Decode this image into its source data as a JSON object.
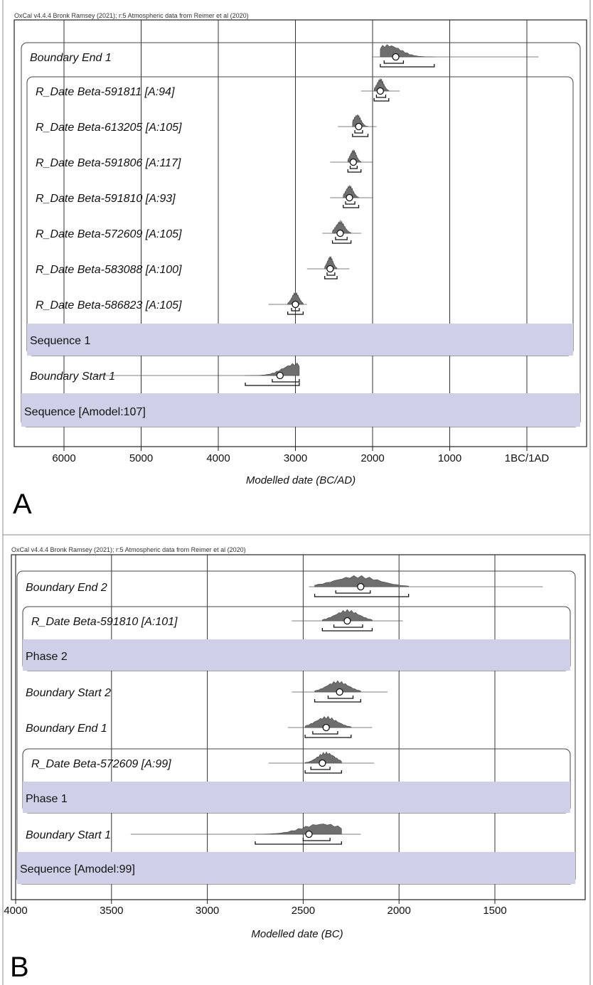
{
  "panels": [
    {
      "letter": "A",
      "credit": "OxCal v4.4.4 Bronk Ramsey (2021); r:5 Atmospheric data from Reimer et al (2020)",
      "xlabel": "Modelled date (BC/AD)",
      "ticks": [
        {
          "value": 6000,
          "label": "6000"
        },
        {
          "value": 5000,
          "label": "5000"
        },
        {
          "value": 4000,
          "label": "4000"
        },
        {
          "value": 3000,
          "label": "3000"
        },
        {
          "value": 2000,
          "label": "2000"
        },
        {
          "value": 1000,
          "label": "1000"
        },
        {
          "value": 0,
          "label": "1BC/1AD"
        }
      ],
      "groups": [
        {
          "name": "Sequence 1"
        },
        {
          "name": "Sequence [Amodel:107]"
        }
      ],
      "rows": [
        {
          "label": "Boundary End 1",
          "median": 1700,
          "line": [
            2000,
            -150
          ],
          "peak": 1800,
          "r68": [
            1850,
            1600
          ],
          "r95": [
            1900,
            1200
          ]
        },
        {
          "label": "R_Date Beta-591811 [A:94]",
          "median": 1900,
          "line": [
            2150,
            1650
          ],
          "peak": 1900,
          "r68": [
            1950,
            1830
          ],
          "r95": [
            1980,
            1790
          ]
        },
        {
          "label": "R_Date Beta-613205 [A:105]",
          "median": 2180,
          "line": [
            2450,
            1950
          ],
          "peak": 2200,
          "r68": [
            2230,
            2130
          ],
          "r95": [
            2260,
            2060
          ]
        },
        {
          "label": "R_Date Beta-591806 [A:117]",
          "median": 2250,
          "line": [
            2550,
            2000
          ],
          "peak": 2250,
          "r68": [
            2290,
            2200
          ],
          "r95": [
            2320,
            2150
          ]
        },
        {
          "label": "R_Date Beta-591810 [A:93]",
          "median": 2300,
          "line": [
            2550,
            2000
          ],
          "peak": 2300,
          "r68": [
            2350,
            2230
          ],
          "r95": [
            2380,
            2180
          ]
        },
        {
          "label": "R_Date Beta-572609 [A:105]",
          "median": 2420,
          "line": [
            2650,
            2150
          ],
          "peak": 2420,
          "r68": [
            2480,
            2330
          ],
          "r95": [
            2520,
            2280
          ]
        },
        {
          "label": "R_Date Beta-583088 [A:100]",
          "median": 2550,
          "line": [
            2850,
            2300
          ],
          "peak": 2550,
          "r68": [
            2590,
            2490
          ],
          "r95": [
            2620,
            2460
          ]
        },
        {
          "label": "R_Date Beta-586823 [A:105]",
          "median": 3000,
          "line": [
            3350,
            2850
          ],
          "peak": 3000,
          "r68": [
            3050,
            2950
          ],
          "r95": [
            3100,
            2900
          ]
        },
        {
          "label": "Boundary Start 1",
          "median": 3200,
          "line": [
            5600,
            2950
          ],
          "peak": 3000,
          "r68": [
            3300,
            2950
          ],
          "r95": [
            3650,
            2950
          ]
        }
      ]
    },
    {
      "letter": "B",
      "credit": "OxCal v4.4.4 Bronk Ramsey (2021); r:5 Atmospheric data from Reimer et al (2020)",
      "xlabel": "Modelled date (BC)",
      "ticks": [
        {
          "value": 4000,
          "label": "4000"
        },
        {
          "value": 3500,
          "label": "3500"
        },
        {
          "value": 3000,
          "label": "3000"
        },
        {
          "value": 2500,
          "label": "2500"
        },
        {
          "value": 2000,
          "label": "2000"
        },
        {
          "value": 1500,
          "label": "1500"
        }
      ],
      "groups": [
        {
          "name": "Phase 2"
        },
        {
          "name": "Phase 1"
        },
        {
          "name": "Sequence [Amodel:99]"
        }
      ],
      "rows": [
        {
          "label": "Boundary End 2",
          "median": 2200,
          "line": [
            2470,
            1250
          ],
          "peak": 2220,
          "r68": [
            2330,
            2150
          ],
          "r95": [
            2440,
            1950
          ]
        },
        {
          "label": "R_Date Beta-591810 [A:101]",
          "median": 2270,
          "line": [
            2560,
            1980
          ],
          "peak": 2270,
          "r68": [
            2340,
            2190
          ],
          "r95": [
            2400,
            2140
          ]
        },
        {
          "label": "Boundary Start 2",
          "median": 2310,
          "line": [
            2560,
            2060
          ],
          "peak": 2320,
          "r68": [
            2370,
            2240
          ],
          "r95": [
            2440,
            2200
          ]
        },
        {
          "label": "Boundary End 1",
          "median": 2380,
          "line": [
            2580,
            2140
          ],
          "peak": 2380,
          "r68": [
            2450,
            2320
          ],
          "r95": [
            2490,
            2250
          ]
        },
        {
          "label": "R_Date Beta-572609 [A:99]",
          "median": 2400,
          "line": [
            2680,
            2130
          ],
          "peak": 2380,
          "r68": [
            2460,
            2360
          ],
          "r95": [
            2490,
            2300
          ]
        },
        {
          "label": "Boundary Start 1",
          "median": 2470,
          "line": [
            3400,
            2200
          ],
          "peak": 2400,
          "r68": [
            2500,
            2360
          ],
          "r95": [
            2750,
            2300
          ]
        }
      ]
    }
  ],
  "chart_data": [
    {
      "type": "table",
      "xlabel": "Modelled date (BC/AD)",
      "xlim": [
        6500,
        -250
      ],
      "rows": [
        {
          "label": "Boundary End 1",
          "median": 1700
        },
        {
          "label": "R_Date Beta-591811 [A:94]",
          "median": 1900
        },
        {
          "label": "R_Date Beta-613205 [A:105]",
          "median": 2180
        },
        {
          "label": "R_Date Beta-591806 [A:117]",
          "median": 2250
        },
        {
          "label": "R_Date Beta-591810 [A:93]",
          "median": 2300
        },
        {
          "label": "R_Date Beta-572609 [A:105]",
          "median": 2420
        },
        {
          "label": "R_Date Beta-583088 [A:100]",
          "median": 2550
        },
        {
          "label": "R_Date Beta-586823 [A:105]",
          "median": 3000
        },
        {
          "label": "Boundary Start 1",
          "median": 3200
        }
      ]
    },
    {
      "type": "table",
      "xlabel": "Modelled date (BC)",
      "xlim": [
        4000,
        1100
      ],
      "rows": [
        {
          "label": "Boundary End 2",
          "median": 2200
        },
        {
          "label": "R_Date Beta-591810 [A:101]",
          "median": 2270
        },
        {
          "label": "Boundary Start 2",
          "median": 2310
        },
        {
          "label": "Boundary End 1",
          "median": 2380
        },
        {
          "label": "R_Date Beta-572609 [A:99]",
          "median": 2400
        },
        {
          "label": "Boundary Start 1",
          "median": 2470
        }
      ]
    }
  ]
}
